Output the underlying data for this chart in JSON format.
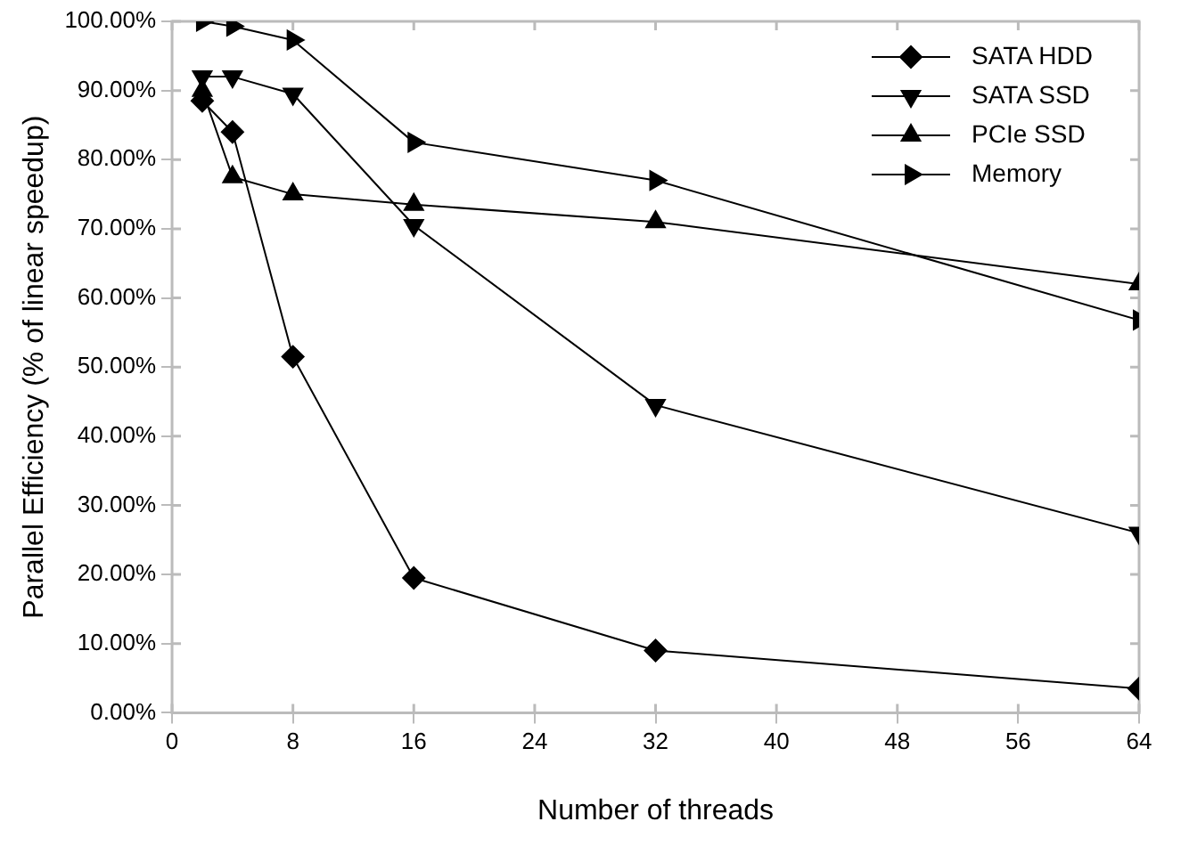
{
  "chart_data": {
    "type": "line",
    "xlabel": "Number of threads",
    "ylabel": "Parallel Efficiency (% of linear speedup)",
    "x": [
      2,
      4,
      8,
      16,
      32,
      64
    ],
    "series": [
      {
        "name": "SATA HDD",
        "color": "#000000",
        "marker": "diamond",
        "values": [
          88.5,
          84,
          51.5,
          19.5,
          9,
          3.5
        ]
      },
      {
        "name": "SATA SSD",
        "color": "#000000",
        "marker": "triangle",
        "values": [
          92,
          92,
          89.5,
          70.5,
          44.5,
          26
        ]
      },
      {
        "name": "PCIe SSD",
        "color": "#000000",
        "marker": "triangle",
        "values": [
          90,
          77.5,
          75,
          73.5,
          71,
          62
        ]
      },
      {
        "name": "Memory",
        "color": "#000000",
        "marker": "triangle",
        "values": [
          100,
          99.3,
          97.3,
          82.5,
          77,
          56.8
        ]
      }
    ],
    "xlim": [
      0,
      64
    ],
    "xticks": [
      0,
      8,
      16,
      24,
      32,
      40,
      48,
      56,
      64
    ],
    "ylim": [
      0,
      100
    ],
    "yticks": [
      {
        "value": 0,
        "label": "0.00%"
      },
      {
        "value": 10,
        "label": "10.00%"
      },
      {
        "value": 20,
        "label": "20.00%"
      },
      {
        "value": 30,
        "label": "30.00%"
      },
      {
        "value": 40,
        "label": "40.00%"
      },
      {
        "value": 50,
        "label": "50.00%"
      },
      {
        "value": 60,
        "label": "60.00%"
      },
      {
        "value": 70,
        "label": "70.00%"
      },
      {
        "value": 80,
        "label": "80.00%"
      },
      {
        "value": 90,
        "label": "90.00%"
      },
      {
        "value": 100,
        "label": "100.00%"
      }
    ],
    "grid": false,
    "legend": "top right",
    "line_style": "solid"
  }
}
